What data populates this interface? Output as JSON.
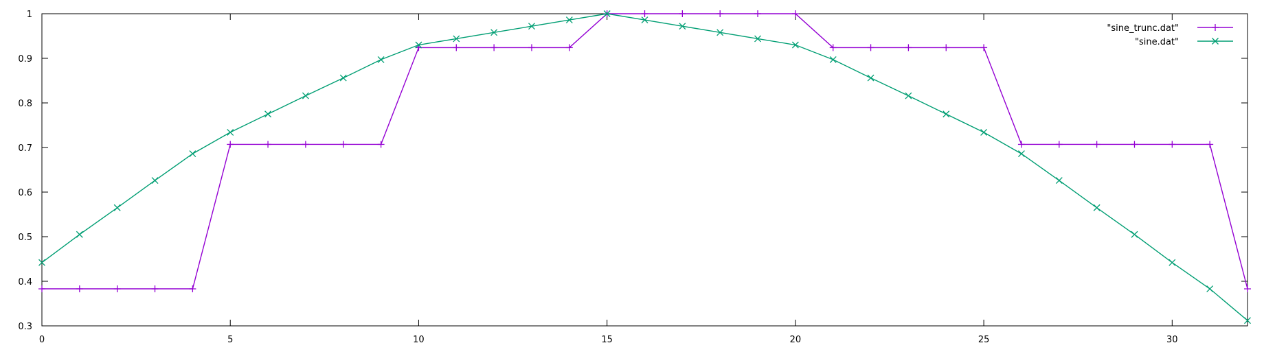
{
  "chart_data": {
    "type": "line",
    "title": "",
    "xlabel": "",
    "ylabel": "",
    "xlim": [
      0,
      32
    ],
    "ylim": [
      0.3,
      1.0
    ],
    "x_ticks": [
      0,
      5,
      10,
      15,
      20,
      25,
      30
    ],
    "y_ticks": [
      0.3,
      0.4,
      0.5,
      0.6,
      0.7,
      0.8,
      0.9,
      1.0
    ],
    "x_tick_labels": [
      "0",
      "5",
      "10",
      "15",
      "20",
      "25",
      "30"
    ],
    "y_tick_labels": [
      "0.3",
      "0.4",
      "0.5",
      "0.6",
      "0.7",
      "0.8",
      "0.9",
      "1"
    ],
    "grid": false,
    "legend_position": "top-right",
    "x": [
      0,
      1,
      2,
      3,
      4,
      5,
      6,
      7,
      8,
      9,
      10,
      11,
      12,
      13,
      14,
      15,
      16,
      17,
      18,
      19,
      20,
      21,
      22,
      23,
      24,
      25,
      26,
      27,
      28,
      29,
      30,
      31,
      32
    ],
    "series": [
      {
        "name": "\"sine_trunc.dat\"",
        "color": "#9400d3",
        "marker": "plus",
        "values": [
          0.383,
          0.383,
          0.383,
          0.383,
          0.383,
          0.707,
          0.707,
          0.707,
          0.707,
          0.707,
          0.924,
          0.924,
          0.924,
          0.924,
          0.924,
          1.0,
          1.0,
          1.0,
          1.0,
          1.0,
          1.0,
          0.924,
          0.924,
          0.924,
          0.924,
          0.924,
          0.707,
          0.707,
          0.707,
          0.707,
          0.707,
          0.707,
          0.383
        ]
      },
      {
        "name": "\"sine.dat\"",
        "color": "#009e73",
        "marker": "cross",
        "values": [
          0.442,
          0.505,
          0.565,
          0.626,
          0.686,
          0.734,
          0.775,
          0.816,
          0.856,
          0.897,
          0.93,
          0.944,
          0.958,
          0.972,
          0.986,
          1.0,
          0.986,
          0.972,
          0.958,
          0.944,
          0.93,
          0.897,
          0.856,
          0.816,
          0.775,
          0.734,
          0.686,
          0.626,
          0.565,
          0.505,
          0.442,
          0.383,
          0.312
        ]
      }
    ]
  }
}
